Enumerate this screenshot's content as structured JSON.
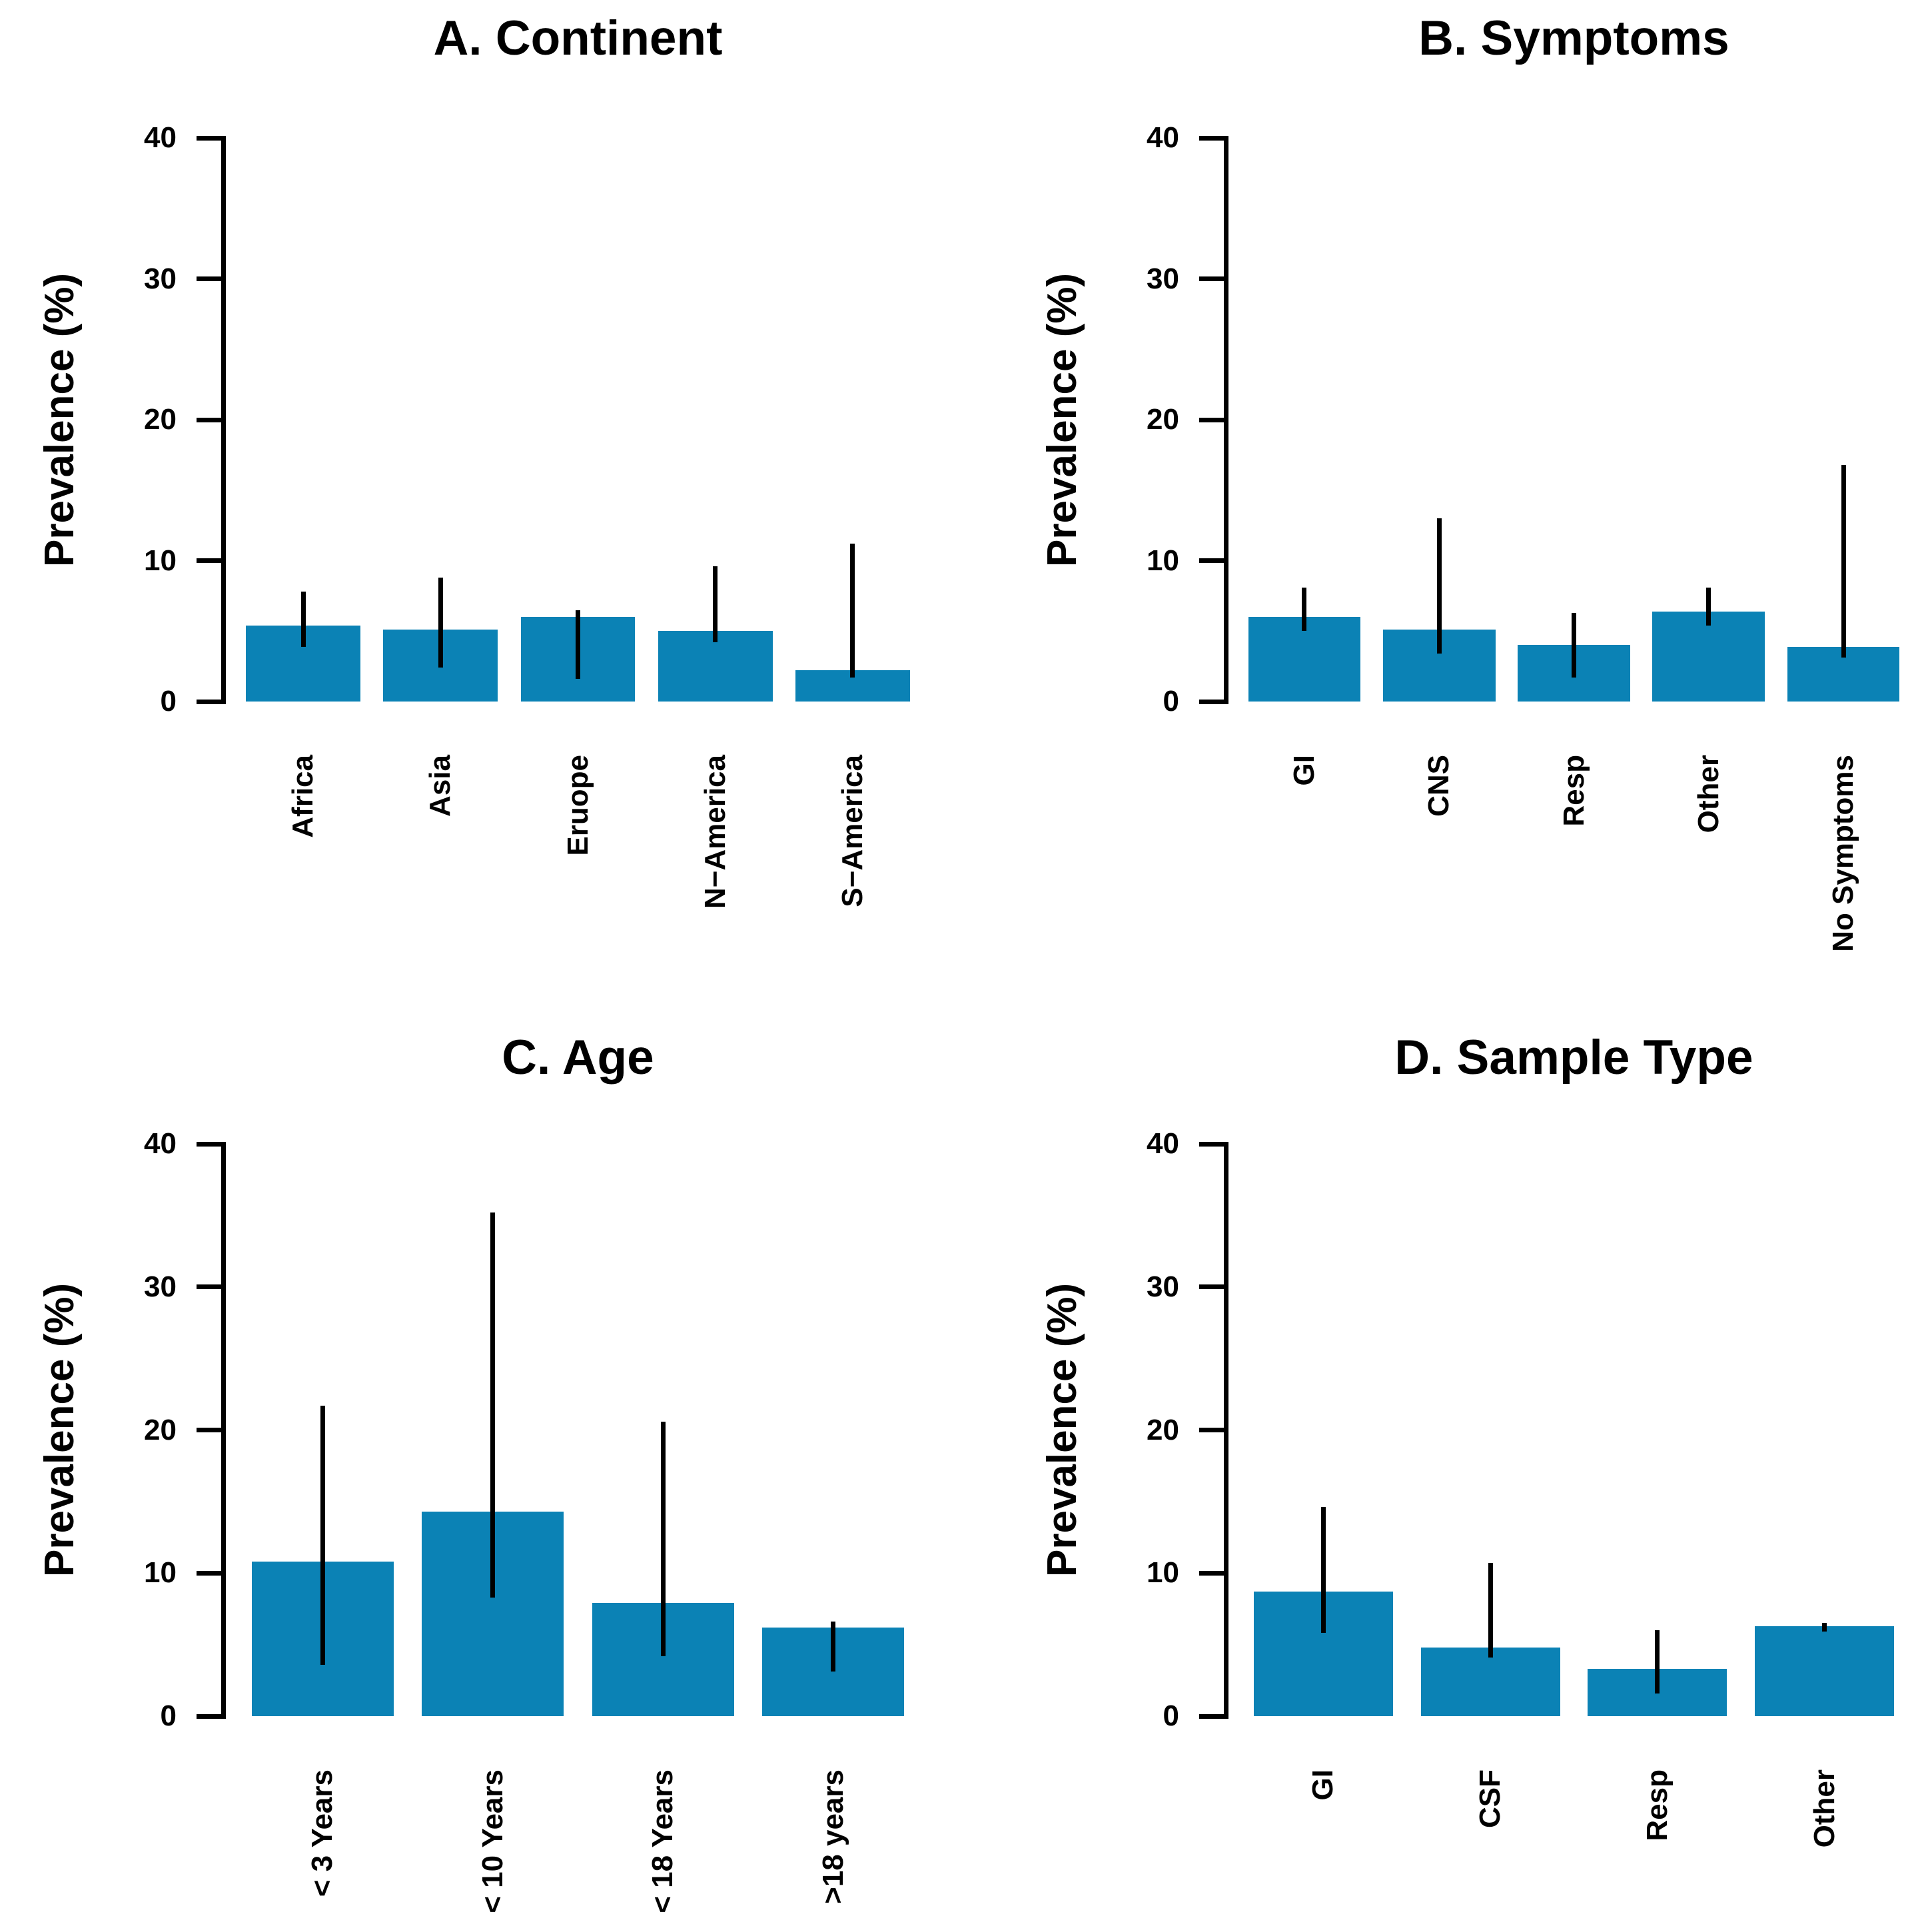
{
  "style": {
    "bar_color": "#0b82b5",
    "axis_color": "#000000",
    "text_color": "#000000",
    "background": "#ffffff"
  },
  "chart_data": [
    {
      "type": "bar",
      "panel": "A",
      "title": "A. Continent",
      "xlabel": "",
      "ylabel": "Prevalence (%)",
      "ylim": [
        0,
        40
      ],
      "yticks": [
        0,
        10,
        20,
        30,
        40
      ],
      "grid": false,
      "legend": null,
      "error_bars": true,
      "categories": [
        "Africa",
        "Asia",
        "Eruope",
        "N−America",
        "S−America"
      ],
      "values": [
        5.4,
        5.1,
        6.0,
        5.0,
        2.2
      ],
      "ci_low": [
        3.9,
        2.4,
        1.6,
        4.2,
        1.7
      ],
      "ci_high": [
        7.8,
        8.8,
        6.5,
        9.6,
        11.2
      ]
    },
    {
      "type": "bar",
      "panel": "B",
      "title": "B. Symptoms",
      "xlabel": "",
      "ylabel": "Prevalence (%)",
      "ylim": [
        0,
        40
      ],
      "yticks": [
        0,
        10,
        20,
        30,
        40
      ],
      "grid": false,
      "legend": null,
      "error_bars": true,
      "categories": [
        "GI",
        "CNS",
        "Resp",
        "Other",
        "No Symptoms"
      ],
      "values": [
        6.0,
        5.1,
        4.0,
        6.4,
        3.9
      ],
      "ci_low": [
        5.0,
        3.4,
        1.7,
        5.4,
        3.1
      ],
      "ci_high": [
        8.1,
        13.0,
        6.3,
        8.1,
        16.8
      ]
    },
    {
      "type": "bar",
      "panel": "C",
      "title": "C. Age",
      "xlabel": "",
      "ylabel": "Prevalence (%)",
      "ylim": [
        0,
        40
      ],
      "yticks": [
        0,
        10,
        20,
        30,
        40
      ],
      "grid": false,
      "legend": null,
      "error_bars": true,
      "categories": [
        "< 3 Years",
        "< 10 Years",
        "< 18 Years",
        ">18 years"
      ],
      "values": [
        10.8,
        14.3,
        7.9,
        6.2
      ],
      "ci_low": [
        3.6,
        8.3,
        4.2,
        3.1
      ],
      "ci_high": [
        21.7,
        35.2,
        20.6,
        6.6
      ]
    },
    {
      "type": "bar",
      "panel": "D",
      "title": "D. Sample Type",
      "xlabel": "",
      "ylabel": "Prevalence (%)",
      "ylim": [
        0,
        40
      ],
      "yticks": [
        0,
        10,
        20,
        30,
        40
      ],
      "grid": false,
      "legend": null,
      "error_bars": true,
      "categories": [
        "GI",
        "CSF",
        "Resp",
        "Other"
      ],
      "values": [
        8.7,
        4.8,
        3.3,
        6.3
      ],
      "ci_low": [
        5.8,
        4.1,
        1.6,
        5.9
      ],
      "ci_high": [
        14.6,
        10.7,
        6.0,
        6.5
      ]
    }
  ]
}
